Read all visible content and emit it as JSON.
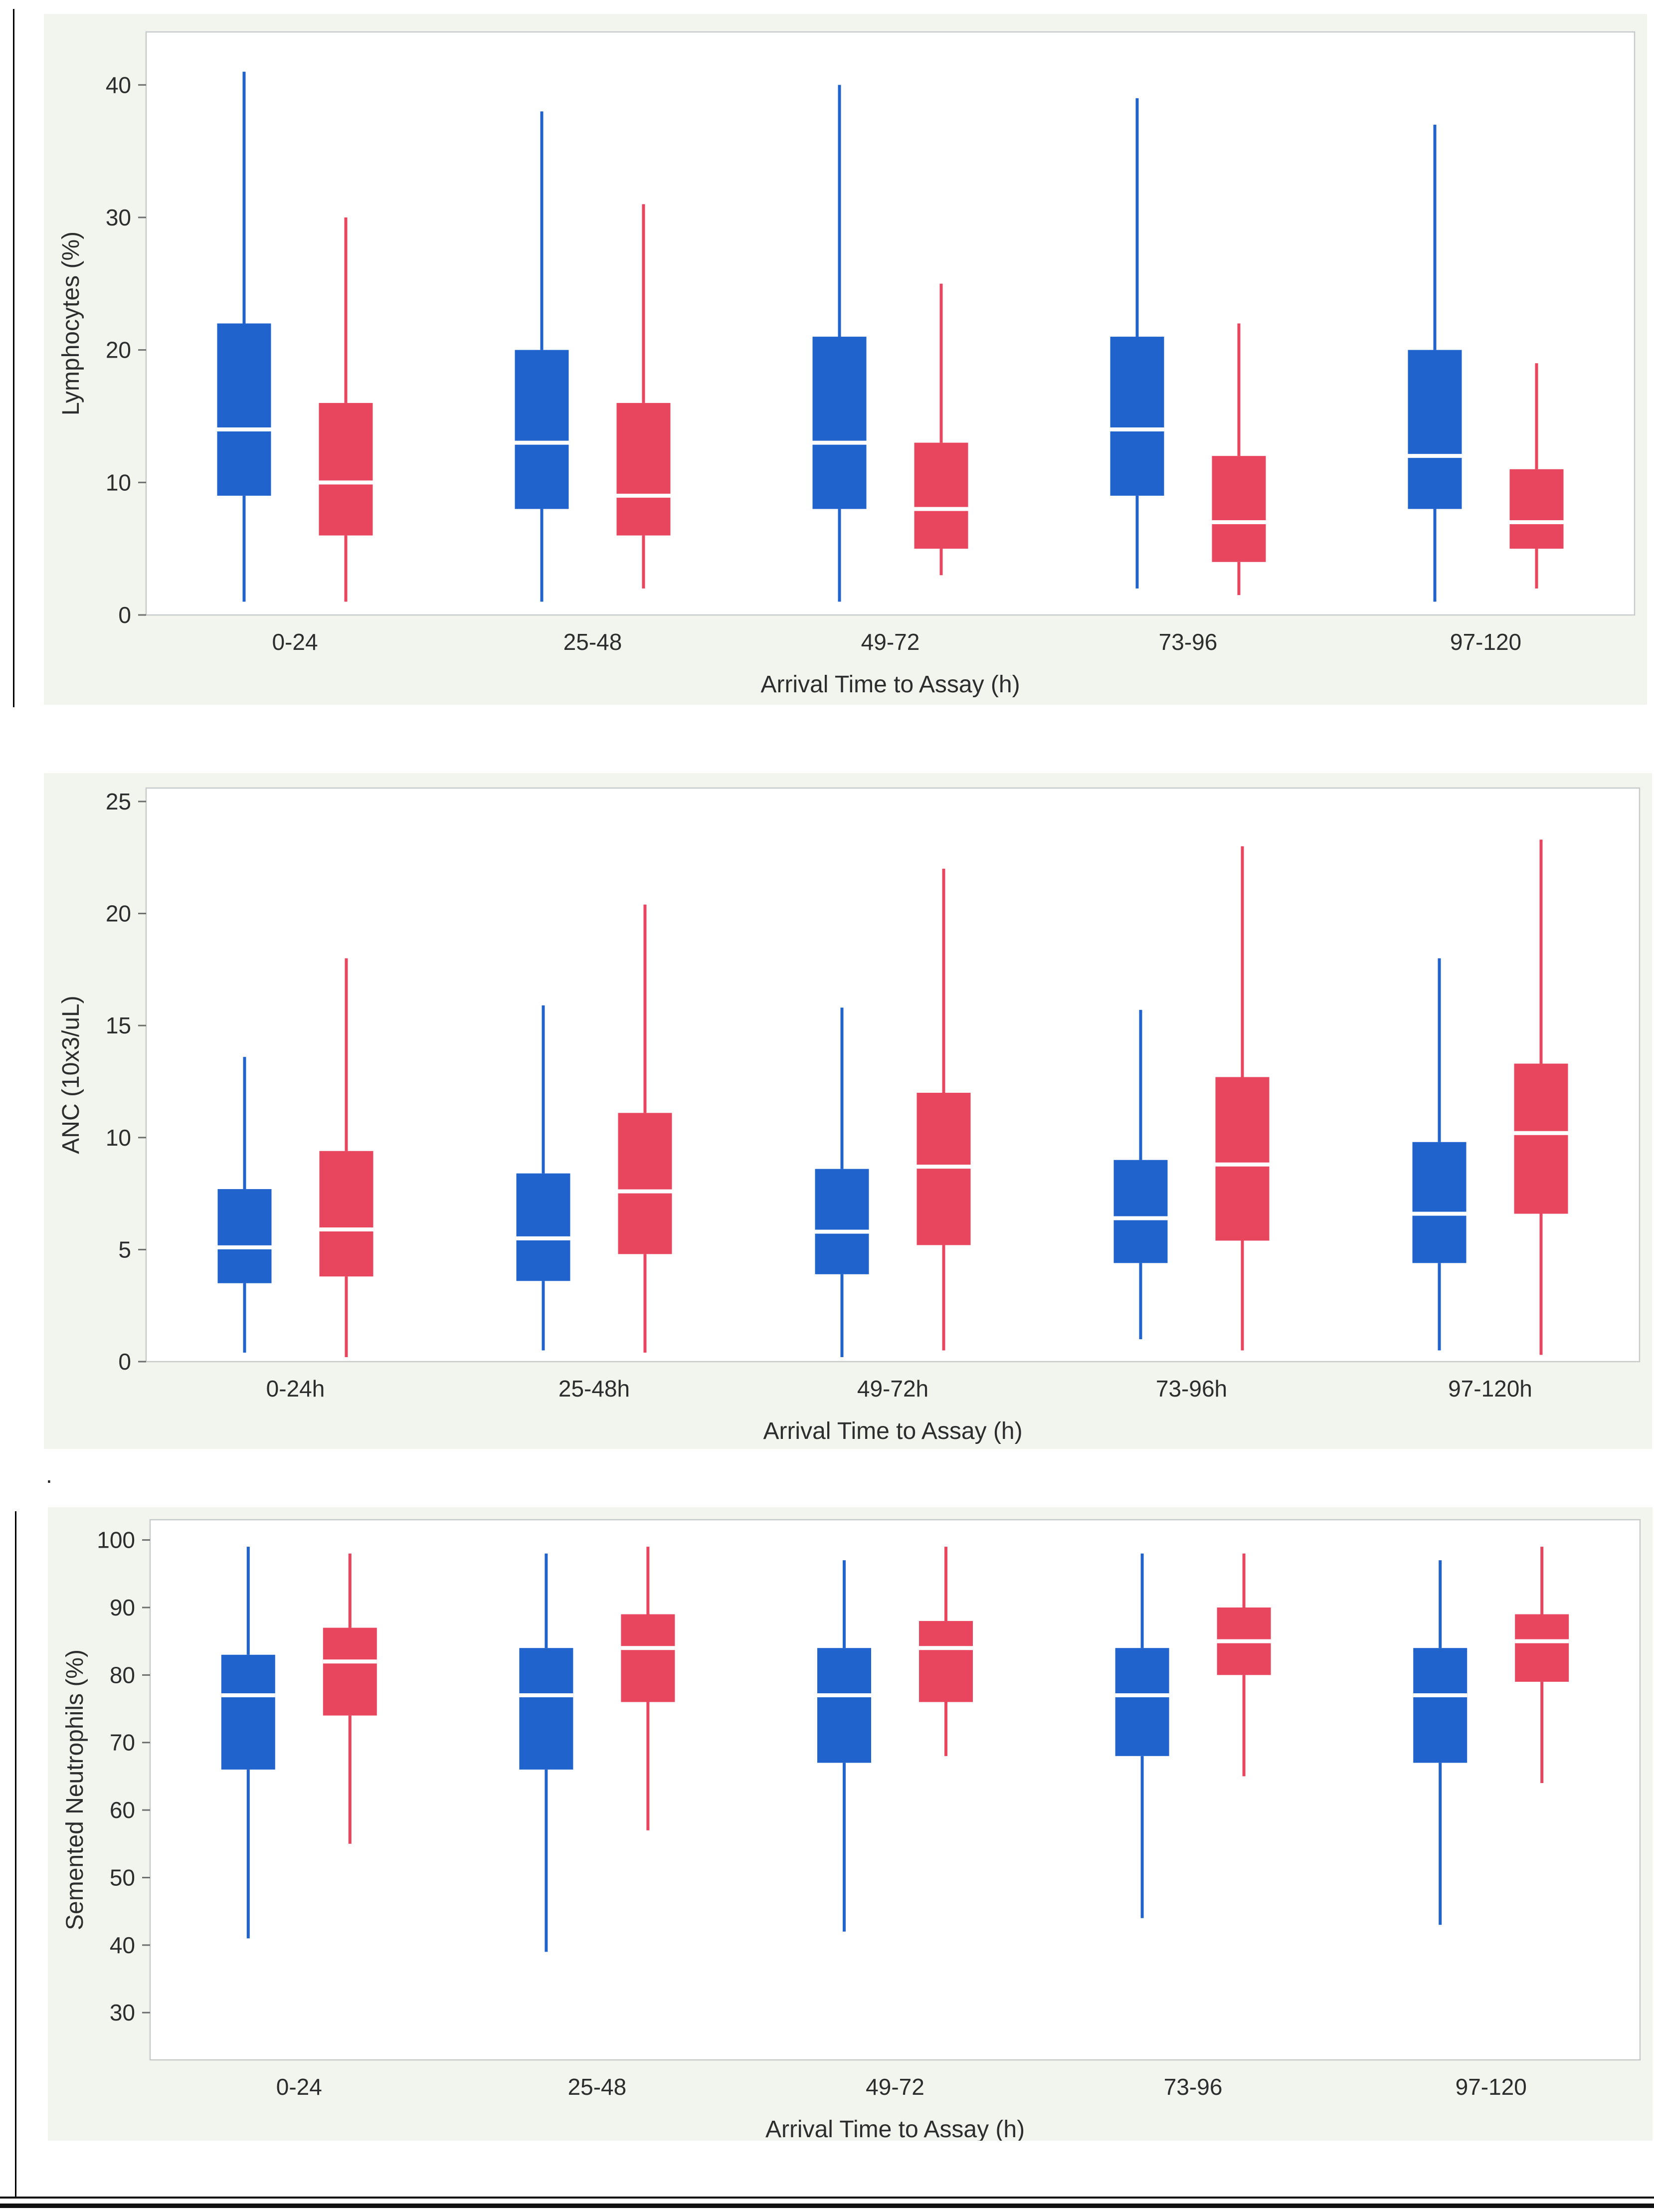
{
  "colors": {
    "panel_bg": "#f2f4ee",
    "plot_bg": "#ffffff",
    "plot_border": "#c6cac9",
    "tick": "#6e6e6e",
    "text": "#2d2d2d",
    "blue": "#2163cc",
    "red": "#e8455f",
    "median": "#ffffff"
  },
  "decorations": {
    "stray_mark": "."
  },
  "chart_data": [
    {
      "type": "boxplot",
      "title": "",
      "ylabel": "Lymphocytes (%)",
      "xlabel": "Arrival Time to Assay (h)",
      "categories": [
        "0-24",
        "25-48",
        "49-72",
        "73-96",
        "97-120"
      ],
      "ylim": [
        0,
        44
      ],
      "yticks": [
        0,
        10,
        20,
        30,
        40
      ],
      "grid": false,
      "legend": "none",
      "series": [
        {
          "color": "#2163cc",
          "boxes": [
            {
              "low": 1,
              "q1": 9,
              "median": 14,
              "q3": 22,
              "high": 41
            },
            {
              "low": 1,
              "q1": 8,
              "median": 13,
              "q3": 20,
              "high": 38
            },
            {
              "low": 1,
              "q1": 8,
              "median": 13,
              "q3": 21,
              "high": 40
            },
            {
              "low": 2,
              "q1": 9,
              "median": 14,
              "q3": 21,
              "high": 39
            },
            {
              "low": 1,
              "q1": 8,
              "median": 12,
              "q3": 20,
              "high": 37
            }
          ]
        },
        {
          "color": "#e8455f",
          "boxes": [
            {
              "low": 1,
              "q1": 6,
              "median": 10,
              "q3": 16,
              "high": 30
            },
            {
              "low": 2,
              "q1": 6,
              "median": 9,
              "q3": 16,
              "high": 31
            },
            {
              "low": 3,
              "q1": 5,
              "median": 8,
              "q3": 13,
              "high": 25
            },
            {
              "low": 1.5,
              "q1": 4,
              "median": 7,
              "q3": 12,
              "high": 22
            },
            {
              "low": 2,
              "q1": 5,
              "median": 7,
              "q3": 11,
              "high": 19
            }
          ]
        }
      ]
    },
    {
      "type": "boxplot",
      "title": "",
      "ylabel": "ANC (10x3/uL)",
      "xlabel": "Arrival Time to Assay (h)",
      "categories": [
        "0-24h",
        "25-48h",
        "49-72h",
        "73-96h",
        "97-120h"
      ],
      "ylim": [
        0,
        25.6
      ],
      "yticks": [
        0,
        5,
        10,
        15,
        20,
        25
      ],
      "grid": false,
      "legend": "none",
      "series": [
        {
          "color": "#2163cc",
          "boxes": [
            {
              "low": 0.4,
              "q1": 3.5,
              "median": 5.1,
              "q3": 7.7,
              "high": 13.6
            },
            {
              "low": 0.5,
              "q1": 3.6,
              "median": 5.5,
              "q3": 8.4,
              "high": 15.9
            },
            {
              "low": 0.2,
              "q1": 3.9,
              "median": 5.8,
              "q3": 8.6,
              "high": 15.8
            },
            {
              "low": 1.0,
              "q1": 4.4,
              "median": 6.4,
              "q3": 9.0,
              "high": 15.7
            },
            {
              "low": 0.5,
              "q1": 4.4,
              "median": 6.6,
              "q3": 9.8,
              "high": 18.0
            }
          ]
        },
        {
          "color": "#e8455f",
          "boxes": [
            {
              "low": 0.2,
              "q1": 3.8,
              "median": 5.9,
              "q3": 9.4,
              "high": 18.0
            },
            {
              "low": 0.4,
              "q1": 4.8,
              "median": 7.6,
              "q3": 11.1,
              "high": 20.4
            },
            {
              "low": 0.5,
              "q1": 5.2,
              "median": 8.7,
              "q3": 12.0,
              "high": 22.0
            },
            {
              "low": 0.5,
              "q1": 5.4,
              "median": 8.8,
              "q3": 12.7,
              "high": 23.0
            },
            {
              "low": 0.3,
              "q1": 6.6,
              "median": 10.2,
              "q3": 13.3,
              "high": 23.3
            }
          ]
        }
      ]
    },
    {
      "type": "boxplot",
      "title": "",
      "ylabel": "Semented Neutrophils (%)",
      "xlabel": "Arrival Time to Assay (h)",
      "categories": [
        "0-24",
        "25-48",
        "49-72",
        "73-96",
        "97-120"
      ],
      "ylim": [
        23,
        103
      ],
      "yticks": [
        30,
        40,
        50,
        60,
        70,
        80,
        90,
        100
      ],
      "grid": false,
      "legend": "none",
      "series": [
        {
          "color": "#2163cc",
          "boxes": [
            {
              "low": 41,
              "q1": 66,
              "median": 77,
              "q3": 83,
              "high": 99
            },
            {
              "low": 39,
              "q1": 66,
              "median": 77,
              "q3": 84,
              "high": 98
            },
            {
              "low": 42,
              "q1": 67,
              "median": 77,
              "q3": 84,
              "high": 97
            },
            {
              "low": 44,
              "q1": 68,
              "median": 77,
              "q3": 84,
              "high": 98
            },
            {
              "low": 43,
              "q1": 67,
              "median": 77,
              "q3": 84,
              "high": 97
            }
          ]
        },
        {
          "color": "#e8455f",
          "boxes": [
            {
              "low": 55,
              "q1": 74,
              "median": 82,
              "q3": 87,
              "high": 98
            },
            {
              "low": 57,
              "q1": 76,
              "median": 84,
              "q3": 89,
              "high": 99
            },
            {
              "low": 68,
              "q1": 76,
              "median": 84,
              "q3": 88,
              "high": 99
            },
            {
              "low": 65,
              "q1": 80,
              "median": 85,
              "q3": 90,
              "high": 98
            },
            {
              "low": 64,
              "q1": 79,
              "median": 85,
              "q3": 89,
              "high": 99
            }
          ]
        }
      ]
    }
  ]
}
